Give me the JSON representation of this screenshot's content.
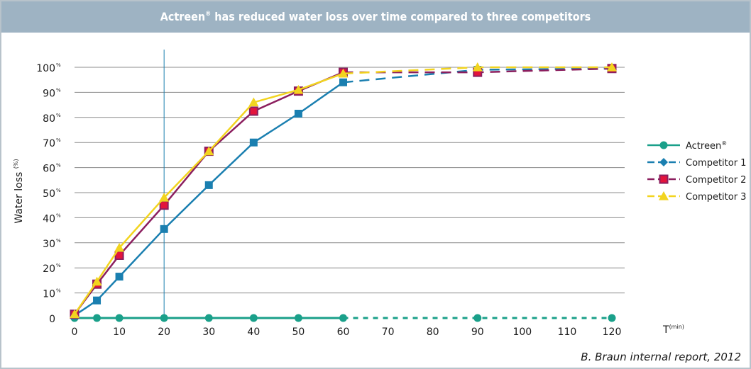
{
  "header": {
    "title_prefix": "Actreen",
    "title_mark": "®",
    "title_suffix": " has reduced water loss over time compared to three competitors"
  },
  "source": "B. Braun internal report, 2012",
  "chart_data": {
    "type": "line",
    "title": "Actreen® has reduced water loss over time compared to three competitors",
    "xlabel": "T",
    "xlabel_unit": "(min)",
    "ylabel": "Water loss",
    "ylabel_unit": "(%)",
    "xlim": [
      0,
      120
    ],
    "ylim": [
      0,
      100
    ],
    "x_ticks": [
      0,
      10,
      20,
      30,
      40,
      50,
      60,
      70,
      80,
      90,
      100,
      110,
      120
    ],
    "y_ticks": [
      0,
      10,
      20,
      30,
      40,
      50,
      60,
      70,
      80,
      90,
      100
    ],
    "y_tick_labels": [
      "0",
      "10",
      "20",
      "30",
      "40",
      "50",
      "60",
      "70",
      "80",
      "90",
      "100"
    ],
    "y_tick_unit": "%",
    "reference_line_x": 20,
    "dashed_after_x": 60,
    "grid": true,
    "legend_position": "right",
    "series": [
      {
        "name": "Actreen",
        "name_mark": "®",
        "color": "#1aa08a",
        "marker": "circle",
        "x": [
          0,
          5,
          10,
          20,
          30,
          40,
          50,
          60,
          90,
          120
        ],
        "values": [
          0,
          0,
          0,
          0,
          0,
          0,
          0,
          0,
          0,
          0
        ]
      },
      {
        "name": "Competitor 1",
        "name_mark": "",
        "color": "#1a7fb0",
        "marker": "square",
        "legend_marker": "diamond",
        "x": [
          0,
          5,
          10,
          20,
          30,
          40,
          50,
          60,
          90,
          120
        ],
        "values": [
          1,
          7,
          16.5,
          35.5,
          53,
          70,
          81.5,
          94,
          99,
          99.5
        ]
      },
      {
        "name": "Competitor 2",
        "name_mark": "",
        "color": "#8b1e5e",
        "fill": "#e3143c",
        "marker": "square",
        "x": [
          0,
          5,
          10,
          20,
          30,
          40,
          50,
          60,
          90,
          120
        ],
        "values": [
          1.5,
          13.5,
          25,
          45,
          66.5,
          82.5,
          90.5,
          98,
          98,
          99.5
        ]
      },
      {
        "name": "Competitor 3",
        "name_mark": "",
        "color": "#f2d41f",
        "marker": "triangle",
        "x": [
          0,
          5,
          10,
          20,
          30,
          40,
          50,
          60,
          90,
          120
        ],
        "values": [
          1.5,
          14.5,
          28,
          48,
          66.5,
          86,
          91,
          97.5,
          100,
          100
        ]
      }
    ]
  }
}
